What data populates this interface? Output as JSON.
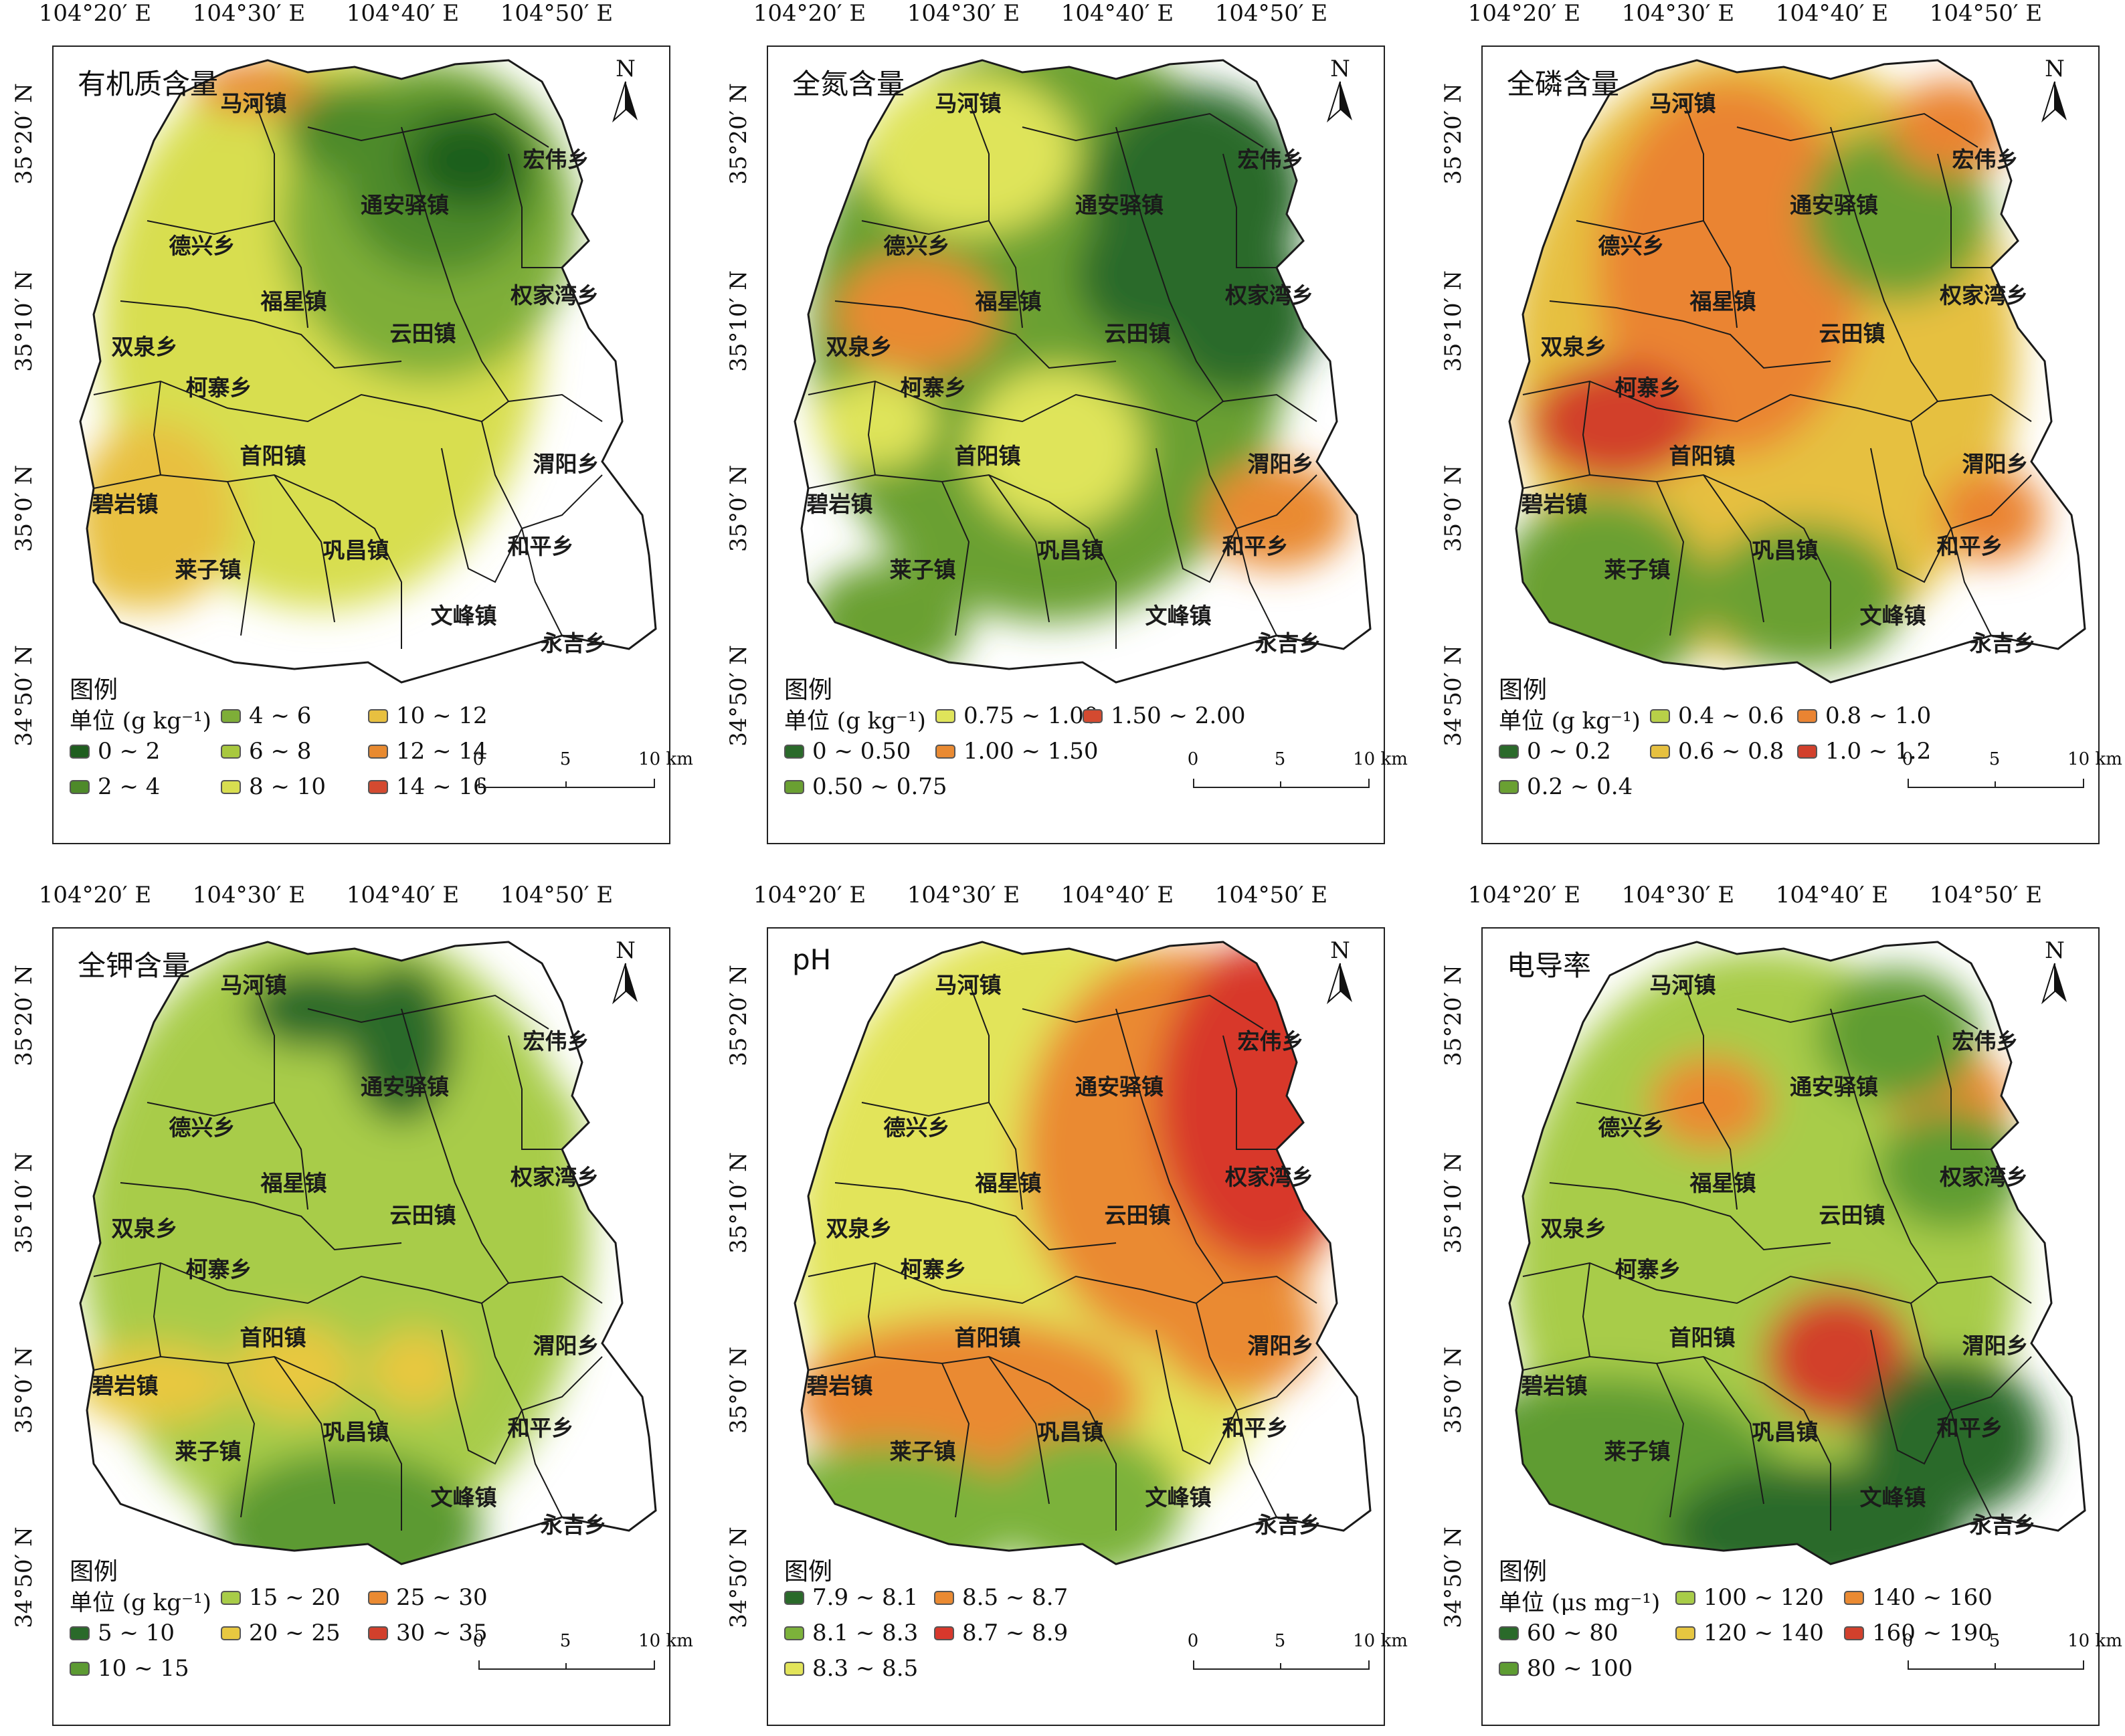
{
  "lon_ticks": [
    "104°20′ E",
    "104°30′ E",
    "104°40′ E",
    "104°50′ E"
  ],
  "lat_ticks": [
    "35°20′ N",
    "35°10′ N",
    "35°0′ N",
    "34°50′ N"
  ],
  "north_label": "N",
  "legend_title": "图例",
  "scale_labels": [
    "0",
    "5",
    "10 km"
  ],
  "towns": [
    {
      "name": "马河镇"
    },
    {
      "name": "宏伟乡"
    },
    {
      "name": "通安驿镇"
    },
    {
      "name": "德兴乡"
    },
    {
      "name": "福星镇"
    },
    {
      "name": "权家湾乡"
    },
    {
      "name": "云田镇"
    },
    {
      "name": "双泉乡"
    },
    {
      "name": "柯寨乡"
    },
    {
      "name": "首阳镇"
    },
    {
      "name": "渭阳乡"
    },
    {
      "name": "碧岩镇"
    },
    {
      "name": "巩昌镇"
    },
    {
      "name": "和平乡"
    },
    {
      "name": "莱子镇"
    },
    {
      "name": "文峰镇"
    },
    {
      "name": "永吉乡"
    }
  ],
  "panels": [
    {
      "title": "有机质含量",
      "unit": "单位 (g kg⁻¹)",
      "classes": [
        {
          "label": "0 ~ 2",
          "color": "#1f5e1f"
        },
        {
          "label": "2 ~ 4",
          "color": "#4e8a2a"
        },
        {
          "label": "4 ~ 6",
          "color": "#7eae38"
        },
        {
          "label": "6 ~ 8",
          "color": "#a8c83e"
        },
        {
          "label": "8 ~ 10",
          "color": "#d8de50"
        },
        {
          "label": "10 ~ 12",
          "color": "#e8c040"
        },
        {
          "label": "12 ~ 14",
          "color": "#e88a30"
        },
        {
          "label": "14 ~ 16",
          "color": "#d44a30"
        }
      ]
    },
    {
      "title": "全氮含量",
      "unit": "单位 (g kg⁻¹)",
      "classes": [
        {
          "label": "0 ~ 0.50",
          "color": "#2a6a2a"
        },
        {
          "label": "0.50 ~ 0.75",
          "color": "#6aa032"
        },
        {
          "label": "0.75 ~ 1.00",
          "color": "#dfe45a"
        },
        {
          "label": "1.00 ~ 1.50",
          "color": "#e98a32"
        },
        {
          "label": "1.50 ~ 2.00",
          "color": "#d44a30"
        }
      ]
    },
    {
      "title": "全磷含量",
      "unit": "单位 (g kg⁻¹)",
      "classes": [
        {
          "label": "0 ~ 0.2",
          "color": "#2a6a2a"
        },
        {
          "label": "0.2 ~ 0.4",
          "color": "#6aa032"
        },
        {
          "label": "0.4 ~ 0.6",
          "color": "#b8d048"
        },
        {
          "label": "0.6 ~ 0.8",
          "color": "#e6c040"
        },
        {
          "label": "0.8 ~ 1.0",
          "color": "#ea8432"
        },
        {
          "label": "1.0 ~ 1.2",
          "color": "#d2402c"
        }
      ]
    },
    {
      "title": "全钾含量",
      "unit": "单位 (g kg⁻¹)",
      "classes": [
        {
          "label": "5 ~ 10",
          "color": "#2a6a2a"
        },
        {
          "label": "10 ~ 15",
          "color": "#5c9a32"
        },
        {
          "label": "15 ~ 20",
          "color": "#a8cc48"
        },
        {
          "label": "20 ~ 25",
          "color": "#e8c840"
        },
        {
          "label": "25 ~ 30",
          "color": "#ea8a32"
        },
        {
          "label": "30 ~ 35",
          "color": "#d2402c"
        }
      ]
    },
    {
      "title": "pH",
      "unit": "",
      "classes": [
        {
          "label": "7.9 ~ 8.1",
          "color": "#2a6a2a"
        },
        {
          "label": "8.1 ~ 8.3",
          "color": "#7cb23a"
        },
        {
          "label": "8.3 ~ 8.5",
          "color": "#e2e45a"
        },
        {
          "label": "8.5 ~ 8.7",
          "color": "#ea8a32"
        },
        {
          "label": "8.7 ~ 8.9",
          "color": "#d8382c"
        }
      ]
    },
    {
      "title": "电导率",
      "unit": "单位 (μs mg⁻¹)",
      "classes": [
        {
          "label": "60 ~ 80",
          "color": "#2a6a2a"
        },
        {
          "label": "80 ~ 100",
          "color": "#5e9c32"
        },
        {
          "label": "100 ~ 120",
          "color": "#a8cc48"
        },
        {
          "label": "120 ~ 140",
          "color": "#e6c640"
        },
        {
          "label": "140 ~ 160",
          "color": "#ea8a32"
        },
        {
          "label": "160 ~ 190",
          "color": "#d2402c"
        }
      ]
    }
  ]
}
